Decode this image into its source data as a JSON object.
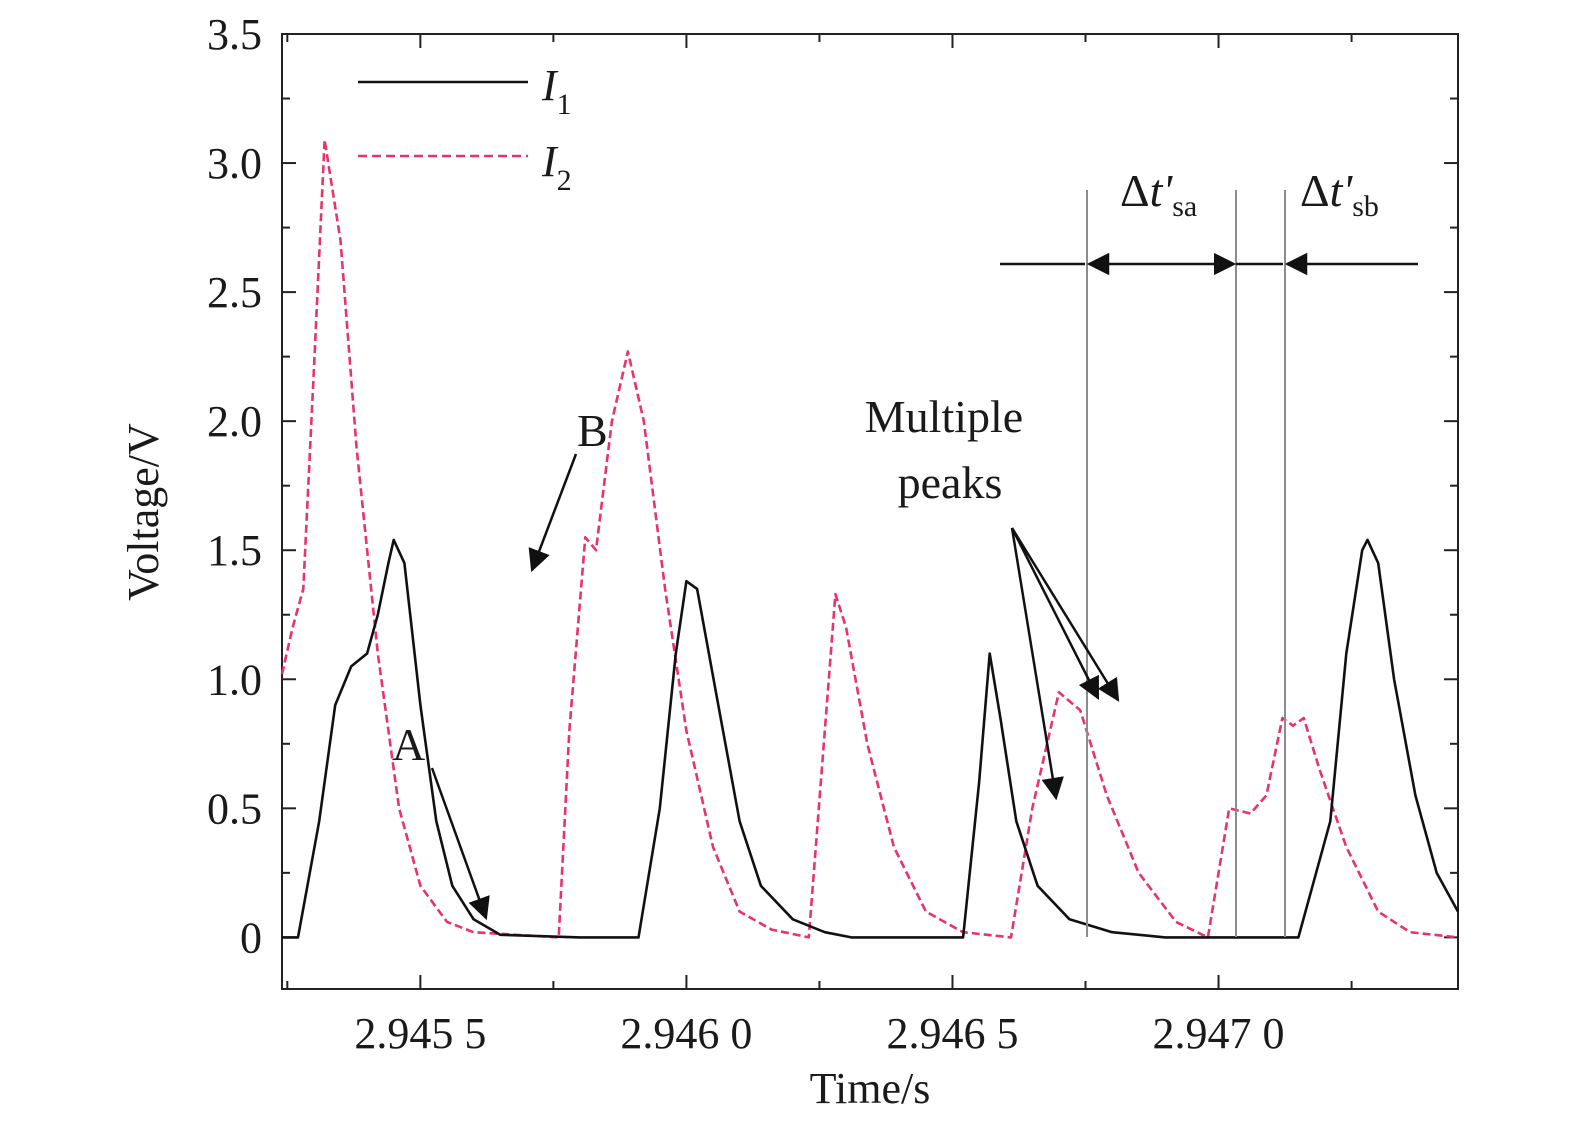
{
  "chart_data": {
    "type": "line",
    "xlabel": "Time/s",
    "ylabel": "Voltage/V",
    "xlim": [
      2.94524,
      2.94745
    ],
    "ylim": [
      -0.2,
      3.5
    ],
    "x_tick_values": [
      2.9455,
      2.946,
      2.9465,
      2.947
    ],
    "x_tick_labels": [
      "2.945 5",
      "2.946 0",
      "2.946 5",
      "2.947 0"
    ],
    "y_tick_values": [
      0,
      0.5,
      1.0,
      1.5,
      2.0,
      2.5,
      3.0,
      3.5
    ],
    "y_tick_labels": [
      "0",
      "0.5",
      "1.0",
      "1.5",
      "2.0",
      "2.5",
      "3.0",
      "3.5"
    ],
    "grid": false,
    "legend_position": "top-left",
    "series": [
      {
        "name": "I1",
        "legend_main": "I",
        "legend_sub": "1",
        "color": "#111111",
        "style": "solid",
        "points": [
          [
            2.94524,
            0.0
          ],
          [
            2.94527,
            0.0
          ],
          [
            2.94531,
            0.45
          ],
          [
            2.94534,
            0.9
          ],
          [
            2.94537,
            1.05
          ],
          [
            2.9454,
            1.1
          ],
          [
            2.94542,
            1.25
          ],
          [
            2.94544,
            1.45
          ],
          [
            2.94545,
            1.54
          ],
          [
            2.94547,
            1.45
          ],
          [
            2.9455,
            0.9
          ],
          [
            2.94553,
            0.45
          ],
          [
            2.94556,
            0.2
          ],
          [
            2.9456,
            0.07
          ],
          [
            2.94565,
            0.01
          ],
          [
            2.9458,
            0.0
          ],
          [
            2.94591,
            0.0
          ],
          [
            2.94595,
            0.5
          ],
          [
            2.94598,
            1.1
          ],
          [
            2.946,
            1.38
          ],
          [
            2.94602,
            1.35
          ],
          [
            2.94606,
            0.9
          ],
          [
            2.9461,
            0.45
          ],
          [
            2.94614,
            0.2
          ],
          [
            2.9462,
            0.07
          ],
          [
            2.94626,
            0.02
          ],
          [
            2.94631,
            0.0
          ],
          [
            2.94645,
            0.0
          ],
          [
            2.94652,
            0.0
          ],
          [
            2.94655,
            0.6
          ],
          [
            2.94657,
            1.1
          ],
          [
            2.94659,
            0.85
          ],
          [
            2.94662,
            0.45
          ],
          [
            2.94666,
            0.2
          ],
          [
            2.94672,
            0.07
          ],
          [
            2.9468,
            0.02
          ],
          [
            2.9469,
            0.0
          ],
          [
            2.94715,
            0.0
          ],
          [
            2.94721,
            0.45
          ],
          [
            2.94724,
            1.1
          ],
          [
            2.94727,
            1.5
          ],
          [
            2.94728,
            1.54
          ],
          [
            2.9473,
            1.45
          ],
          [
            2.94733,
            1.0
          ],
          [
            2.94737,
            0.55
          ],
          [
            2.94741,
            0.25
          ],
          [
            2.94745,
            0.1
          ]
        ]
      },
      {
        "name": "I2",
        "legend_main": "I",
        "legend_sub": "2",
        "color": "#e8336b",
        "style": "dashed",
        "points": [
          [
            2.94524,
            1.02
          ],
          [
            2.94526,
            1.2
          ],
          [
            2.94528,
            1.35
          ],
          [
            2.9453,
            2.2
          ],
          [
            2.94532,
            3.09
          ],
          [
            2.94535,
            2.7
          ],
          [
            2.94538,
            1.9
          ],
          [
            2.94542,
            1.1
          ],
          [
            2.94546,
            0.5
          ],
          [
            2.9455,
            0.2
          ],
          [
            2.94555,
            0.06
          ],
          [
            2.9456,
            0.02
          ],
          [
            2.94576,
            0.0
          ],
          [
            2.94578,
            0.8
          ],
          [
            2.94581,
            1.55
          ],
          [
            2.94583,
            1.5
          ],
          [
            2.94586,
            2.0
          ],
          [
            2.94589,
            2.27
          ],
          [
            2.94592,
            2.0
          ],
          [
            2.94596,
            1.35
          ],
          [
            2.946,
            0.8
          ],
          [
            2.94605,
            0.35
          ],
          [
            2.9461,
            0.1
          ],
          [
            2.94616,
            0.03
          ],
          [
            2.94623,
            0.0
          ],
          [
            2.94626,
            0.8
          ],
          [
            2.94628,
            1.33
          ],
          [
            2.9463,
            1.2
          ],
          [
            2.94634,
            0.75
          ],
          [
            2.94639,
            0.35
          ],
          [
            2.94645,
            0.1
          ],
          [
            2.94652,
            0.02
          ],
          [
            2.94661,
            0.0
          ],
          [
            2.94665,
            0.5
          ],
          [
            2.9467,
            0.95
          ],
          [
            2.94674,
            0.88
          ],
          [
            2.94679,
            0.55
          ],
          [
            2.94685,
            0.25
          ],
          [
            2.94692,
            0.06
          ],
          [
            2.94698,
            0.0
          ],
          [
            2.94702,
            0.5
          ],
          [
            2.94706,
            0.48
          ],
          [
            2.94709,
            0.55
          ],
          [
            2.94712,
            0.85
          ],
          [
            2.94714,
            0.82
          ],
          [
            2.94716,
            0.85
          ],
          [
            2.94719,
            0.65
          ],
          [
            2.94724,
            0.35
          ],
          [
            2.9473,
            0.1
          ],
          [
            2.94736,
            0.02
          ],
          [
            2.94745,
            0.0
          ]
        ]
      }
    ]
  },
  "annotations": {
    "label_a": "A",
    "label_b": "B",
    "multiple_peaks_line1": "Multiple",
    "multiple_peaks_line2": "peaks",
    "delta_sa_symbol": "Δ",
    "delta_sa_var": "t'",
    "delta_sa_sub": "sa",
    "delta_sb_symbol": "Δ",
    "delta_sb_var": "t'",
    "delta_sb_sub": "sb"
  }
}
